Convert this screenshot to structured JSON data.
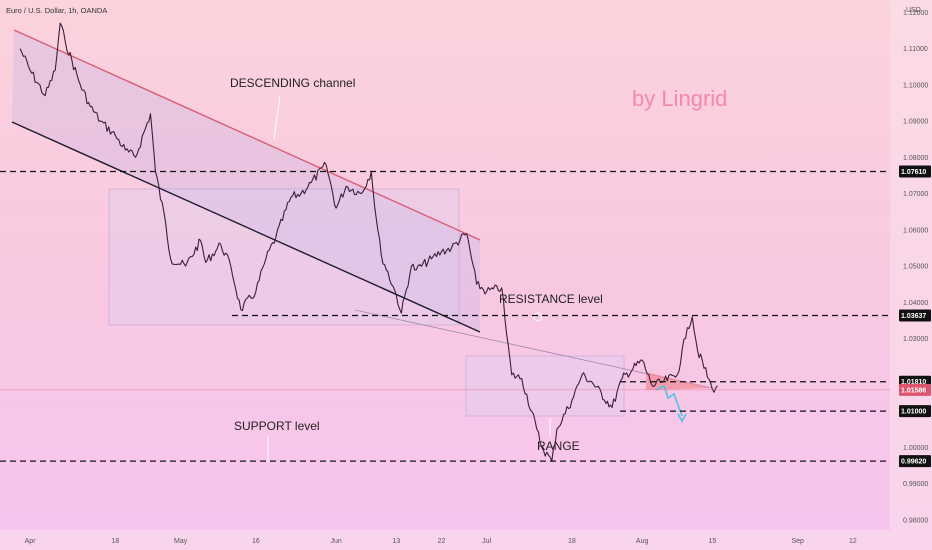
{
  "header": {
    "symbol_label": "Euro / U.S. Dollar, 1h, OANDA",
    "currency": "USD"
  },
  "brand": "by Lingrid",
  "annotations": {
    "descending_channel": "DESCENDING channel",
    "resistance": "RESISTANCE level",
    "support": "SUPPORT level",
    "range": "RANGE"
  },
  "colors": {
    "price_line": "#3a1f3a",
    "upper_channel": "#d95c74",
    "lower_channel": "#1c1c2e",
    "box": "#9a8ad8",
    "projection": "#4fc3e0",
    "price_badge": "#e0536d",
    "level_badge": "#111111"
  },
  "chart_data": {
    "type": "line",
    "title": "Euro / U.S. Dollar, 1h, OANDA",
    "x_ticks": [
      "Apr",
      "18",
      "May",
      "16",
      "Jun",
      "13",
      "22",
      "Jul",
      "18",
      "Aug",
      "15",
      "Sep",
      "12"
    ],
    "y_ticks": [
      "1.12000",
      "1.11000",
      "1.10000",
      "1.09000",
      "1.08000",
      "1.07000",
      "1.06000",
      "1.05000",
      "1.04000",
      "1.03000",
      "1.00000",
      "0.99000",
      "0.98000"
    ],
    "ylim": [
      0.9772,
      1.1234
    ],
    "levels": [
      {
        "value": 1.0761,
        "label": "1.07610"
      },
      {
        "value": 1.03637,
        "label": "1.03637"
      },
      {
        "value": 1.0181,
        "label": "1.01810"
      },
      {
        "value": 1.01,
        "label": "1.01000"
      },
      {
        "value": 0.9962,
        "label": "0.99620"
      }
    ],
    "current_price": {
      "value": 1.01586,
      "label": "1.01586"
    },
    "series": [
      {
        "values": [
          [
            "2022-03-30",
            1.11
          ],
          [
            "2022-04-01",
            1.104
          ],
          [
            "2022-04-04",
            1.097
          ],
          [
            "2022-04-06",
            1.104
          ],
          [
            "2022-04-07",
            1.117
          ],
          [
            "2022-04-08",
            1.112
          ],
          [
            "2022-04-11",
            1.1
          ],
          [
            "2022-04-13",
            1.094
          ],
          [
            "2022-04-15",
            1.09
          ],
          [
            "2022-04-18",
            1.086
          ],
          [
            "2022-04-20",
            1.082
          ],
          [
            "2022-04-22",
            1.08
          ],
          [
            "2022-04-25",
            1.092
          ],
          [
            "2022-04-26",
            1.076
          ],
          [
            "2022-04-28",
            1.062
          ],
          [
            "2022-04-29",
            1.052
          ],
          [
            "2022-05-02",
            1.05
          ],
          [
            "2022-05-05",
            1.057
          ],
          [
            "2022-05-06",
            1.051
          ],
          [
            "2022-05-09",
            1.056
          ],
          [
            "2022-05-11",
            1.05
          ],
          [
            "2022-05-13",
            1.038
          ],
          [
            "2022-05-16",
            1.043
          ],
          [
            "2022-05-18",
            1.052
          ],
          [
            "2022-05-20",
            1.058
          ],
          [
            "2022-05-23",
            1.069
          ],
          [
            "2022-05-25",
            1.07
          ],
          [
            "2022-05-27",
            1.073
          ],
          [
            "2022-05-30",
            1.078
          ],
          [
            "2022-06-01",
            1.066
          ],
          [
            "2022-06-03",
            1.072
          ],
          [
            "2022-06-06",
            1.07
          ],
          [
            "2022-06-08",
            1.076
          ],
          [
            "2022-06-09",
            1.063
          ],
          [
            "2022-06-10",
            1.053
          ],
          [
            "2022-06-13",
            1.042
          ],
          [
            "2022-06-14",
            1.037
          ],
          [
            "2022-06-16",
            1.05
          ],
          [
            "2022-06-17",
            1.049
          ],
          [
            "2022-06-20",
            1.052
          ],
          [
            "2022-06-22",
            1.054
          ],
          [
            "2022-06-24",
            1.055
          ],
          [
            "2022-06-27",
            1.059
          ],
          [
            "2022-06-29",
            1.045
          ],
          [
            "2022-07-01",
            1.043
          ],
          [
            "2022-07-04",
            1.044
          ],
          [
            "2022-07-05",
            1.031
          ],
          [
            "2022-07-06",
            1.02
          ],
          [
            "2022-07-08",
            1.019
          ],
          [
            "2022-07-11",
            1.005
          ],
          [
            "2022-07-12",
            1.0
          ],
          [
            "2022-07-14",
            0.9962
          ],
          [
            "2022-07-15",
            1.005
          ],
          [
            "2022-07-18",
            1.013
          ],
          [
            "2022-07-20",
            1.02
          ],
          [
            "2022-07-22",
            1.018
          ],
          [
            "2022-07-26",
            1.011
          ],
          [
            "2022-07-28",
            1.019
          ],
          [
            "2022-08-01",
            1.024
          ],
          [
            "2022-08-03",
            1.017
          ],
          [
            "2022-08-05",
            1.018
          ],
          [
            "2022-08-08",
            1.02
          ],
          [
            "2022-08-10",
            1.033
          ],
          [
            "2022-08-11",
            1.036
          ],
          [
            "2022-08-12",
            1.027
          ],
          [
            "2022-08-15",
            1.016
          ],
          [
            "2022-08-16",
            1.017
          ]
        ]
      }
    ]
  }
}
